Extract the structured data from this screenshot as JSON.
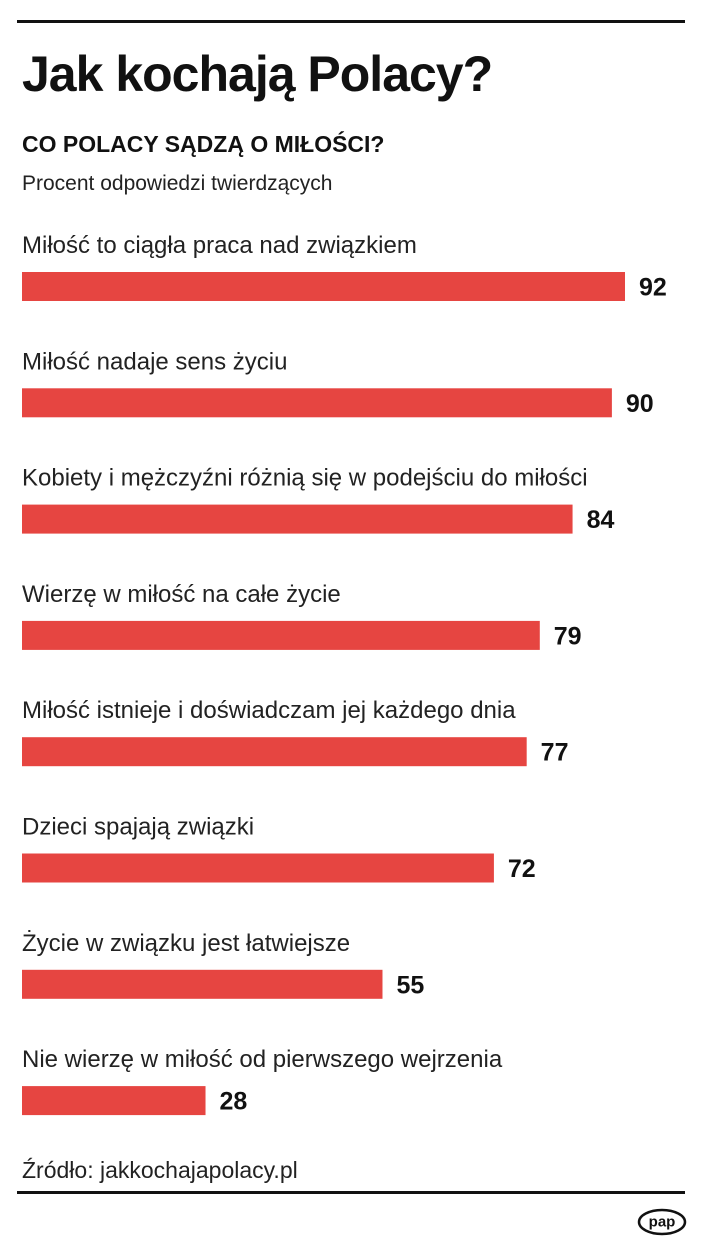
{
  "header": {
    "title": "Jak kochają Polacy?",
    "subtitle": "CO POLACY SĄDZĄ O MIŁOŚCI?",
    "note": "Procent odpowiedzi twierdzących"
  },
  "chart_data": {
    "type": "bar",
    "orientation": "horizontal",
    "title": "CO POLACY SĄDZĄ O MIŁOŚCI?",
    "ylabel": "Procent odpowiedzi twierdzących",
    "categories": [
      "Miłość to ciągła praca nad związkiem",
      "Miłość nadaje sens życiu",
      "Kobiety i mężczyźni różnią się w podejściu do miłości",
      "Wierzę w miłość na całe życie",
      "Miłość istnieje i doświadczam jej każdego dnia",
      "Dzieci spajają związki",
      "Życie w związku jest łatwiejsze",
      "Nie wierzę w miłość od pierwszego wejrzenia"
    ],
    "values": [
      92,
      90,
      84,
      79,
      77,
      72,
      55,
      28
    ],
    "xlim": [
      0,
      100
    ],
    "bar_color": "#e64541",
    "grid": false
  },
  "footer": {
    "source": "Źródło: jakkochajapolacy.pl",
    "logo": "pap"
  }
}
